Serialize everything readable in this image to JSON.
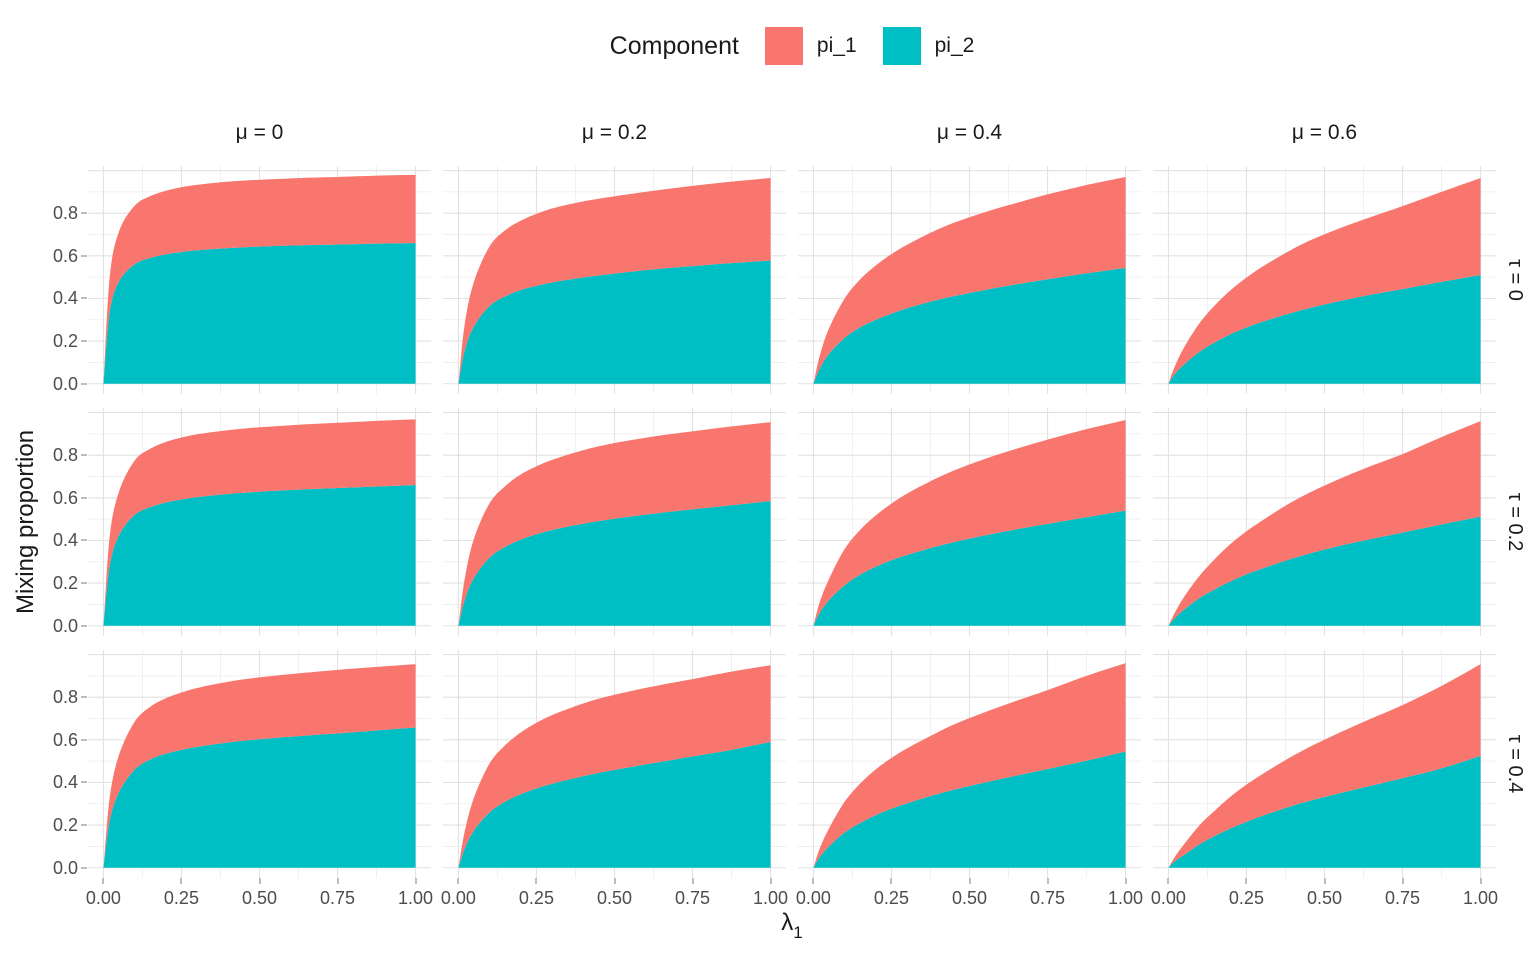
{
  "legend": {
    "title": "Component",
    "items": [
      {
        "label": "pi_1",
        "color": "#F8766D"
      },
      {
        "label": "pi_2",
        "color": "#00BFC4"
      }
    ]
  },
  "facets": {
    "col_labels": [
      "μ = 0",
      "μ = 0.2",
      "μ = 0.4",
      "μ = 0.6"
    ],
    "row_labels": [
      "τ = 0",
      "τ = 0.2",
      "τ = 0.4"
    ]
  },
  "axes": {
    "y_title": "Mixing proportion",
    "x_title_main": "λ",
    "x_title_sub": "1",
    "x_ticks": [
      "0.00",
      "0.25",
      "0.50",
      "0.75",
      "1.00"
    ],
    "x_tick_values": [
      0,
      0.25,
      0.5,
      0.75,
      1
    ],
    "y_ticks": [
      "0.0",
      "0.2",
      "0.4",
      "0.6",
      "0.8"
    ],
    "y_tick_values": [
      0,
      0.2,
      0.4,
      0.6,
      0.8
    ]
  },
  "style": {
    "color_pi1": "#F8766D",
    "color_pi2": "#00BFC4",
    "grid_major": "#E2E2E2",
    "grid_minor": "#ECECEC",
    "tick_color": "#BDBDBD",
    "axis_text_color": "#4D4D4D"
  },
  "chart_data": {
    "type": "area",
    "stacked": true,
    "title": "",
    "xlabel": "lambda_1",
    "ylabel": "Mixing proportion",
    "legend_position": "top",
    "grid": true,
    "xlim": [
      0,
      1
    ],
    "ylim": [
      0,
      1
    ],
    "x_major": [
      0,
      0.25,
      0.5,
      0.75,
      1
    ],
    "x_minor": [
      0.125,
      0.375,
      0.625,
      0.875
    ],
    "y_major": [
      0,
      0.2,
      0.4,
      0.6,
      0.8,
      1
    ],
    "y_minor": [
      0.1,
      0.3,
      0.5,
      0.7,
      0.9
    ],
    "x": [
      0,
      0.02,
      0.05,
      0.1,
      0.15,
      0.2,
      0.25,
      0.3,
      0.375,
      0.45,
      0.55,
      0.65,
      0.75,
      0.875,
      1.0
    ],
    "series_note": "pi2 = cumulative boundary of component pi_2; total = pi_2 + pi_1 stacked upper boundary",
    "panels": [
      {
        "mu": "0",
        "tau": "0",
        "row": 0,
        "col": 0,
        "total": [
          0,
          0.5,
          0.715,
          0.835,
          0.88,
          0.905,
          0.922,
          0.933,
          0.945,
          0.953,
          0.96,
          0.966,
          0.97,
          0.976,
          0.98
        ],
        "pi2": [
          0,
          0.335,
          0.48,
          0.56,
          0.59,
          0.607,
          0.618,
          0.626,
          0.634,
          0.64,
          0.646,
          0.65,
          0.653,
          0.657,
          0.66
        ]
      },
      {
        "mu": "0.2",
        "tau": "0",
        "row": 0,
        "col": 1,
        "total": [
          0,
          0.28,
          0.48,
          0.645,
          0.72,
          0.765,
          0.797,
          0.822,
          0.848,
          0.868,
          0.89,
          0.91,
          0.928,
          0.948,
          0.965
        ],
        "pi2": [
          0,
          0.155,
          0.27,
          0.365,
          0.41,
          0.44,
          0.459,
          0.475,
          0.493,
          0.508,
          0.525,
          0.54,
          0.552,
          0.566,
          0.578
        ]
      },
      {
        "mu": "0.4",
        "tau": "0",
        "row": 0,
        "col": 2,
        "total": [
          0,
          0.13,
          0.26,
          0.4,
          0.49,
          0.555,
          0.608,
          0.652,
          0.708,
          0.755,
          0.805,
          0.848,
          0.888,
          0.932,
          0.97
        ],
        "pi2": [
          0,
          0.07,
          0.14,
          0.215,
          0.265,
          0.3,
          0.329,
          0.354,
          0.385,
          0.411,
          0.44,
          0.466,
          0.49,
          0.518,
          0.543
        ]
      },
      {
        "mu": "0.6",
        "tau": "0",
        "row": 0,
        "col": 3,
        "total": [
          0,
          0.08,
          0.17,
          0.285,
          0.37,
          0.44,
          0.498,
          0.548,
          0.613,
          0.67,
          0.73,
          0.783,
          0.833,
          0.9,
          0.965
        ],
        "pi2": [
          0,
          0.045,
          0.09,
          0.15,
          0.195,
          0.233,
          0.264,
          0.29,
          0.324,
          0.354,
          0.388,
          0.418,
          0.444,
          0.478,
          0.51
        ]
      },
      {
        "mu": "0",
        "tau": "0.2",
        "row": 1,
        "col": 0,
        "total": [
          0,
          0.42,
          0.63,
          0.775,
          0.83,
          0.862,
          0.883,
          0.898,
          0.913,
          0.925,
          0.936,
          0.945,
          0.952,
          0.961,
          0.968
        ],
        "pi2": [
          0,
          0.28,
          0.425,
          0.52,
          0.556,
          0.578,
          0.592,
          0.603,
          0.615,
          0.624,
          0.633,
          0.64,
          0.646,
          0.653,
          0.66
        ]
      },
      {
        "mu": "0.2",
        "tau": "0.2",
        "row": 1,
        "col": 1,
        "total": [
          0,
          0.22,
          0.41,
          0.575,
          0.655,
          0.71,
          0.748,
          0.778,
          0.813,
          0.842,
          0.87,
          0.893,
          0.912,
          0.935,
          0.955
        ],
        "pi2": [
          0,
          0.12,
          0.225,
          0.32,
          0.37,
          0.404,
          0.429,
          0.449,
          0.472,
          0.491,
          0.512,
          0.53,
          0.546,
          0.565,
          0.585
        ]
      },
      {
        "mu": "0.4",
        "tau": "0.2",
        "row": 1,
        "col": 2,
        "total": [
          0,
          0.11,
          0.22,
          0.36,
          0.45,
          0.518,
          0.573,
          0.62,
          0.678,
          0.728,
          0.783,
          0.83,
          0.873,
          0.922,
          0.965
        ],
        "pi2": [
          0,
          0.06,
          0.12,
          0.19,
          0.24,
          0.277,
          0.307,
          0.332,
          0.364,
          0.392,
          0.424,
          0.452,
          0.478,
          0.509,
          0.54
        ]
      },
      {
        "mu": "0.6",
        "tau": "0.2",
        "row": 1,
        "col": 3,
        "total": [
          0,
          0.06,
          0.135,
          0.235,
          0.315,
          0.385,
          0.443,
          0.493,
          0.563,
          0.623,
          0.69,
          0.75,
          0.805,
          0.885,
          0.96
        ],
        "pi2": [
          0,
          0.035,
          0.075,
          0.13,
          0.172,
          0.209,
          0.241,
          0.268,
          0.305,
          0.338,
          0.375,
          0.407,
          0.437,
          0.475,
          0.512
        ]
      },
      {
        "mu": "0",
        "tau": "0.4",
        "row": 2,
        "col": 0,
        "total": [
          0,
          0.33,
          0.53,
          0.685,
          0.755,
          0.795,
          0.822,
          0.843,
          0.866,
          0.884,
          0.901,
          0.915,
          0.928,
          0.942,
          0.955
        ],
        "pi2": [
          0,
          0.22,
          0.355,
          0.46,
          0.508,
          0.535,
          0.553,
          0.567,
          0.583,
          0.596,
          0.609,
          0.62,
          0.63,
          0.644,
          0.658
        ]
      },
      {
        "mu": "0.2",
        "tau": "0.4",
        "row": 2,
        "col": 1,
        "total": [
          0,
          0.17,
          0.33,
          0.49,
          0.575,
          0.635,
          0.68,
          0.716,
          0.758,
          0.793,
          0.828,
          0.858,
          0.885,
          0.92,
          0.95
        ],
        "pi2": [
          0,
          0.09,
          0.175,
          0.26,
          0.31,
          0.345,
          0.372,
          0.394,
          0.421,
          0.445,
          0.472,
          0.497,
          0.522,
          0.553,
          0.59
        ]
      },
      {
        "mu": "0.4",
        "tau": "0.4",
        "row": 2,
        "col": 2,
        "total": [
          0,
          0.09,
          0.185,
          0.31,
          0.395,
          0.462,
          0.515,
          0.56,
          0.618,
          0.672,
          0.73,
          0.783,
          0.833,
          0.9,
          0.96
        ],
        "pi2": [
          0,
          0.05,
          0.1,
          0.165,
          0.21,
          0.247,
          0.277,
          0.302,
          0.336,
          0.366,
          0.4,
          0.432,
          0.463,
          0.502,
          0.545
        ]
      },
      {
        "mu": "0.6",
        "tau": "0.4",
        "row": 2,
        "col": 3,
        "total": [
          0,
          0.05,
          0.11,
          0.2,
          0.27,
          0.335,
          0.39,
          0.438,
          0.505,
          0.565,
          0.635,
          0.7,
          0.763,
          0.853,
          0.955
        ],
        "pi2": [
          0,
          0.03,
          0.06,
          0.11,
          0.15,
          0.185,
          0.215,
          0.243,
          0.28,
          0.313,
          0.35,
          0.385,
          0.42,
          0.466,
          0.525
        ]
      }
    ]
  }
}
